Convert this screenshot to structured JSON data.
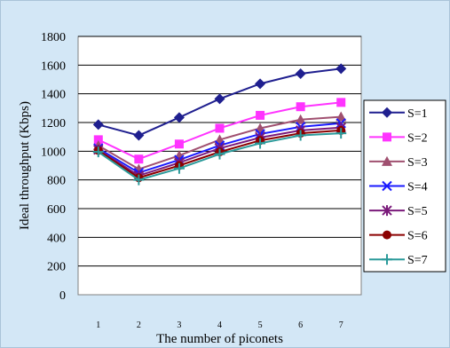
{
  "chart_data": {
    "type": "line",
    "xlabel": "The number of piconets",
    "ylabel": "Ideal throughput (Kbps)",
    "x": [
      1,
      2,
      3,
      4,
      5,
      6,
      7
    ],
    "ylim": [
      0,
      1800
    ],
    "yticks": [
      0,
      200,
      400,
      600,
      800,
      1000,
      1200,
      1400,
      1600,
      1800
    ],
    "grid": "horizontal",
    "legend_position": "right",
    "series": [
      {
        "name": "S=1",
        "color": "#1f1f8f",
        "marker": "diamond",
        "values": [
          1185,
          1110,
          1235,
          1365,
          1470,
          1540,
          1575
        ]
      },
      {
        "name": "S=2",
        "color": "#ff33ff",
        "marker": "square",
        "values": [
          1080,
          945,
          1050,
          1160,
          1250,
          1310,
          1340
        ]
      },
      {
        "name": "S=3",
        "color": "#a05070",
        "marker": "triangle",
        "values": [
          1040,
          875,
          970,
          1080,
          1160,
          1220,
          1240
        ]
      },
      {
        "name": "S=4",
        "color": "#1a1aff",
        "marker": "x",
        "values": [
          1020,
          850,
          940,
          1040,
          1120,
          1170,
          1195
        ]
      },
      {
        "name": "S=5",
        "color": "#7a1a7a",
        "marker": "star",
        "values": [
          1010,
          830,
          920,
          1020,
          1095,
          1145,
          1165
        ]
      },
      {
        "name": "S=6",
        "color": "#8b0000",
        "marker": "circle",
        "values": [
          1005,
          815,
          900,
          995,
          1075,
          1125,
          1145
        ]
      },
      {
        "name": "S=7",
        "color": "#2a9a9a",
        "marker": "plus",
        "values": [
          995,
          800,
          880,
          980,
          1055,
          1110,
          1125
        ]
      }
    ]
  }
}
